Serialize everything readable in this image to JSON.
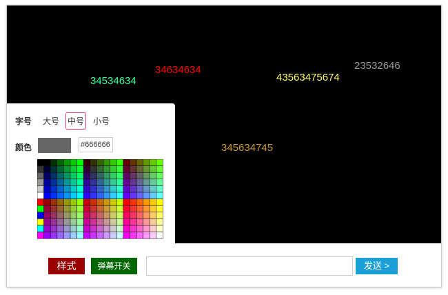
{
  "danmaku": [
    {
      "text": "34534634",
      "color": "#33ff99"
    },
    {
      "text": "34634634",
      "color": "#ff0000"
    },
    {
      "text": "43563475674",
      "color": "#ffff66"
    },
    {
      "text": "23532646",
      "color": "#999999"
    },
    {
      "text": "345634745",
      "color": "#cc9933"
    }
  ],
  "panel": {
    "size_label": "字号",
    "sizes": [
      "大号",
      "中号",
      "小号"
    ],
    "color_label": "颜色",
    "color_value": "#666666"
  },
  "controls": {
    "style_button": "样式",
    "toggle_button": "弹幕开关",
    "send_button": "发送 >"
  }
}
